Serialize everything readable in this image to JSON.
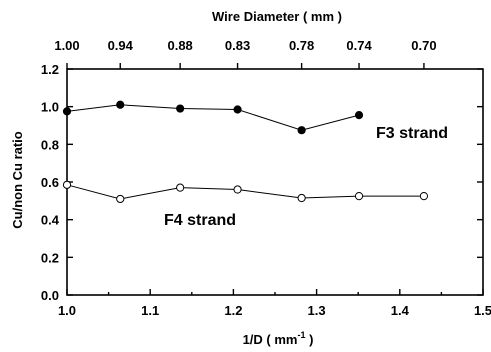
{
  "chart_data": {
    "type": "line",
    "xlabel_main": "1/D ( mm",
    "xlabel_sup": "-1",
    "xlabel_end": " )",
    "ylabel": "Cu/non Cu ratio",
    "top_axis_label": "Wire Diameter  ( mm )",
    "xlim": [
      1.0,
      1.5
    ],
    "ylim": [
      0.0,
      1.2
    ],
    "x_ticks": [
      "1.0",
      "1.1",
      "1.2",
      "1.3",
      "1.4",
      "1.5"
    ],
    "y_ticks": [
      "0.0",
      "0.2",
      "0.4",
      "0.6",
      "0.8",
      "1.0",
      "1.2"
    ],
    "top_ticks": [
      "1.00",
      "0.94",
      "0.88",
      "0.83",
      "0.78",
      "0.74",
      "0.70"
    ],
    "annotations": [
      "F3 strand",
      "F4 strand"
    ],
    "series": [
      {
        "marker": "filled-circle",
        "color": "#000000",
        "x": [
          1.0,
          1.064,
          1.136,
          1.205,
          1.282,
          1.351
        ],
        "values": [
          0.975,
          1.01,
          0.99,
          0.985,
          0.875,
          0.955
        ]
      },
      {
        "marker": "open-circle",
        "color": "#000000",
        "x": [
          1.0,
          1.064,
          1.136,
          1.205,
          1.282,
          1.351,
          1.429
        ],
        "values": [
          0.585,
          0.51,
          0.57,
          0.56,
          0.515,
          0.525,
          0.525
        ]
      }
    ]
  }
}
